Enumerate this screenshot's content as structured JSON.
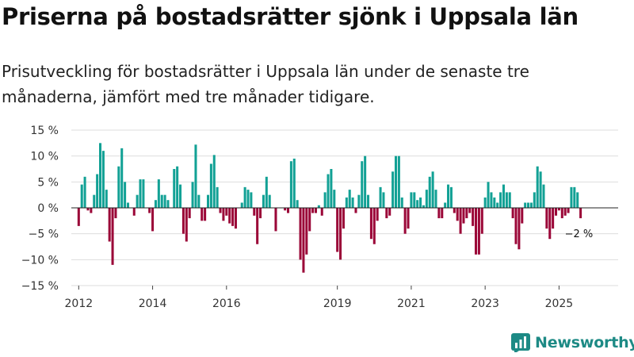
{
  "header": {
    "title": "Priserna på bostadsrätter sjönk i Uppsala län",
    "subtitle": "Prisutveckling för bostadsrätter i Uppsala län under de senaste tre månaderna, jämfört med tre månader tidigare."
  },
  "brand": {
    "name": "Newsworthy",
    "icon": "bar-chart-logo-icon"
  },
  "colors": {
    "positive": "#12a195",
    "negative": "#9b0738",
    "grid": "#dddddd",
    "zero": "#222222"
  },
  "chart_data": {
    "type": "bar",
    "title": "Priserna på bostadsrätter sjönk i Uppsala län",
    "ylabel": "",
    "xlabel": "",
    "unit": "%",
    "ylim": [
      -15,
      15
    ],
    "yticks": [
      15,
      10,
      5,
      0,
      -5,
      -10,
      -15
    ],
    "ytick_labels": [
      "15 %",
      "10 %",
      "5 %",
      "0 %",
      "−5 %",
      "−10 %",
      "−15 %"
    ],
    "xlim": [
      2011.8,
      2026.6
    ],
    "xticks": [
      2012,
      2014,
      2016,
      2019,
      2021,
      2023,
      2025
    ],
    "xtick_labels": [
      "2012",
      "2014",
      "2016",
      "2019",
      "2021",
      "2023",
      "2025"
    ],
    "start": {
      "year": 2012,
      "month": 1
    },
    "missing": {
      "2017-07": true
    },
    "last_label": "−2 %",
    "values": [
      -3.5,
      4.5,
      6,
      -0.5,
      -1,
      2.5,
      6.5,
      12.5,
      11,
      3.5,
      -6.5,
      -11,
      -2,
      8,
      11.5,
      5,
      1,
      0,
      -1.5,
      2.5,
      5.5,
      5.5,
      0,
      -1,
      -4.5,
      1.5,
      5.5,
      2.5,
      2.5,
      1.5,
      0,
      7.5,
      8,
      4.5,
      -5,
      -6.5,
      -2,
      5,
      12.2,
      2.5,
      -2.5,
      -2.5,
      2.5,
      8.5,
      10.2,
      4,
      -1,
      -2.5,
      -1.5,
      -3,
      -3.5,
      -4,
      0,
      1,
      4,
      3.5,
      3,
      -1.5,
      -7,
      -2,
      2.5,
      6,
      2.5,
      0,
      -4.5,
      0,
      -0.5,
      -1,
      9,
      9.5,
      1.5,
      -10,
      -12.5,
      -9,
      -4.5,
      -1,
      -1,
      0.5,
      -1.5,
      3,
      6.5,
      7.5,
      3.5,
      -8.5,
      -10,
      -4,
      2,
      3.5,
      2,
      -1,
      2.5,
      9,
      10,
      2.5,
      -6,
      -7,
      -2.5,
      4,
      3,
      -2,
      -1.5,
      7,
      10,
      10,
      2,
      -5,
      -4,
      3,
      3,
      1.5,
      2,
      0.5,
      3.5,
      6,
      7,
      3.5,
      -2,
      -2,
      1,
      4.5,
      4,
      -1,
      -2.5,
      -5,
      -3,
      -2,
      -1,
      -3.5,
      -9,
      -9,
      -5,
      2,
      5,
      3,
      2,
      1,
      3,
      4.5,
      3,
      3,
      -2,
      -7,
      -8,
      -3,
      1,
      1,
      1,
      3,
      8,
      7,
      4.5,
      -4,
      -6,
      -4,
      -1.5,
      -0.5,
      -2,
      -1.5,
      -1,
      4,
      4,
      3,
      -2
    ]
  }
}
